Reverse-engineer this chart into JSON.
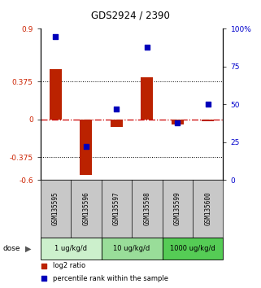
{
  "title": "GDS2924 / 2390",
  "samples": [
    "GSM135595",
    "GSM135596",
    "GSM135597",
    "GSM135598",
    "GSM135599",
    "GSM135600"
  ],
  "log2_ratios": [
    0.5,
    -0.55,
    -0.07,
    0.42,
    -0.05,
    -0.02
  ],
  "percentile_ranks": [
    95,
    22,
    47,
    88,
    38,
    50
  ],
  "dose_groups": [
    {
      "label": "1 ug/kg/d",
      "samples": [
        0,
        1
      ],
      "color": "#ccf0cc"
    },
    {
      "label": "10 ug/kg/d",
      "samples": [
        2,
        3
      ],
      "color": "#99dd99"
    },
    {
      "label": "1000 ug/kg/d",
      "samples": [
        4,
        5
      ],
      "color": "#55cc55"
    }
  ],
  "bar_color": "#bb2200",
  "dot_color": "#0000bb",
  "left_ylim": [
    -0.6,
    0.9
  ],
  "right_ylim": [
    0,
    100
  ],
  "left_yticks": [
    -0.6,
    -0.375,
    0,
    0.375,
    0.9
  ],
  "left_yticklabels": [
    "-0.6",
    "-0.375",
    "0",
    "0.375",
    "0.9"
  ],
  "right_yticks": [
    0,
    25,
    50,
    75,
    100
  ],
  "right_yticklabels": [
    "0",
    "25",
    "50",
    "75",
    "100%"
  ],
  "hline_zero_color": "#cc0000",
  "dotted_line_color": "#000000",
  "legend_log2_label": "log2 ratio",
  "legend_pct_label": "percentile rank within the sample",
  "dose_label": "dose",
  "bar_width": 0.4
}
